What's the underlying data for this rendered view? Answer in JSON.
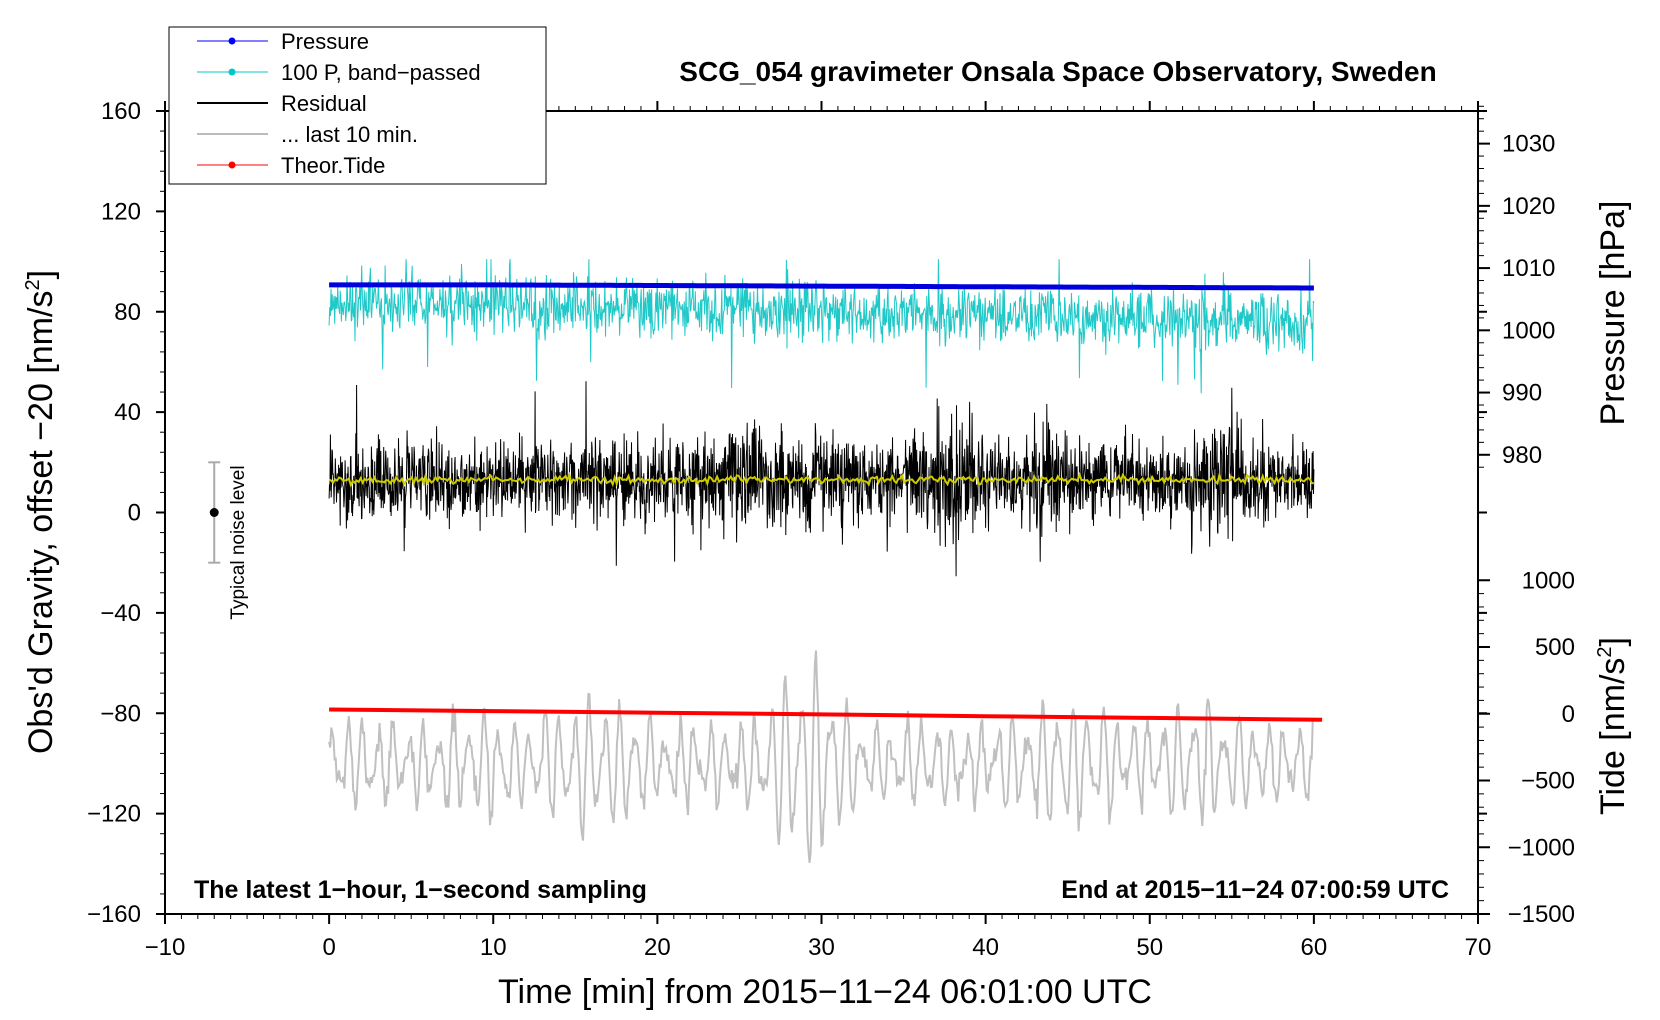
{
  "chart_data": {
    "type": "line",
    "title": "SCG_054 gravimeter Onsala Space Observatory, Sweden",
    "xlabel": "Time [min] from 2015−11−24 06:01:00 UTC",
    "ylabel_prefix": "Obs'd Gravity, offset −20 [nm/s",
    "ylabel_sup": "2",
    "ylabel_suffix": "]",
    "xlim": [
      -10,
      70
    ],
    "ylim": [
      -160,
      160
    ],
    "x_ticks": [
      -10,
      0,
      10,
      20,
      30,
      40,
      50,
      60,
      70
    ],
    "x_tick_labels": [
      "−10",
      "0",
      "10",
      "20",
      "30",
      "40",
      "50",
      "60",
      "70"
    ],
    "y_ticks": [
      -160,
      -120,
      -80,
      -40,
      0,
      40,
      80,
      120,
      160
    ],
    "y_tick_labels": [
      "−160",
      "−120",
      "−80",
      "−40",
      "0",
      "40",
      "80",
      "120",
      "160"
    ],
    "pressure_axis": {
      "label": "Pressure [hPa]",
      "ticks": [
        980,
        990,
        1000,
        1010,
        1020,
        1030
      ],
      "tick_labels": [
        "980",
        "990",
        "1000",
        "1010",
        "1020",
        "1030"
      ],
      "anchor_low": {
        "value": 980,
        "gravity": 23
      },
      "anchor_high": {
        "value": 1030,
        "gravity": 147
      }
    },
    "tide_axis": {
      "label_prefix": "Tide [nm/s",
      "label_sup": "2",
      "label_suffix": "]",
      "ticks": [
        -1500,
        -1000,
        -500,
        0,
        500,
        1000
      ],
      "tick_labels": [
        "−1500",
        "−1000",
        "−500",
        "0",
        "500",
        "1000"
      ],
      "anchor_low": {
        "value": -1500,
        "gravity": -160
      },
      "anchor_high": {
        "value": 1000,
        "gravity": -27
      }
    },
    "legend": [
      {
        "label": "Pressure",
        "color": "#0000ff",
        "marker": true,
        "width": 1
      },
      {
        "label": "100 P, band−passed",
        "color": "#00c8c8",
        "marker": true,
        "width": 1
      },
      {
        "label": "Residual",
        "color": "#000000",
        "marker": false,
        "width": 2
      },
      {
        "label": "... last 10 min.",
        "color": "#bbbbbb",
        "marker": false,
        "width": 2
      },
      {
        "label": "Theor.Tide",
        "color": "#ff0000",
        "marker": true,
        "width": 1
      }
    ],
    "noise_level": {
      "label": "Typical noise level",
      "x": -7,
      "center": 0,
      "half_range": 20
    },
    "annotation_left": "The latest 1−hour, 1−second sampling",
    "annotation_right": "End at 2015−11−24 07:00:59 UTC",
    "series": [
      {
        "name": "Pressure",
        "color": "#0000dd",
        "units": "hPa",
        "x": [
          0,
          10,
          20,
          30,
          40,
          50,
          60
        ],
        "values": [
          1007.3,
          1007.3,
          1007.2,
          1007.1,
          1007.0,
          1006.9,
          1006.8
        ]
      },
      {
        "name": "100 P, band-passed",
        "color": "#20c8c8",
        "units": "nm/s2 (offset)",
        "x_range": [
          0,
          60
        ],
        "center_start": 84,
        "center_end": 76,
        "typical_amplitude": 8,
        "spike_max": 101,
        "spike_min": 41
      },
      {
        "name": "Residual",
        "color": "#000000",
        "units": "nm/s2",
        "x_range": [
          0,
          60
        ],
        "center": 13,
        "typical_amplitude": 15,
        "spike_max": 57,
        "spike_min": -43
      },
      {
        "name": "Residual smoothed",
        "color": "#cccc00",
        "units": "nm/s2",
        "x": [
          0,
          60
        ],
        "values": [
          13,
          13
        ]
      },
      {
        "name": "Theor.Tide",
        "color": "#ff0000",
        "units": "nm/s2 (tide axis)",
        "x": [
          0,
          10,
          20,
          30,
          40,
          50,
          60.5
        ],
        "values": [
          32,
          20,
          8,
          -5,
          -18,
          -31,
          -45
        ]
      },
      {
        "name": "... last 10 min.",
        "color": "#c0c0c0",
        "units": "nm/s2",
        "x_range": [
          0,
          60
        ],
        "center": -100,
        "typical_amplitude": 15,
        "max": -55,
        "min": -155
      }
    ]
  }
}
